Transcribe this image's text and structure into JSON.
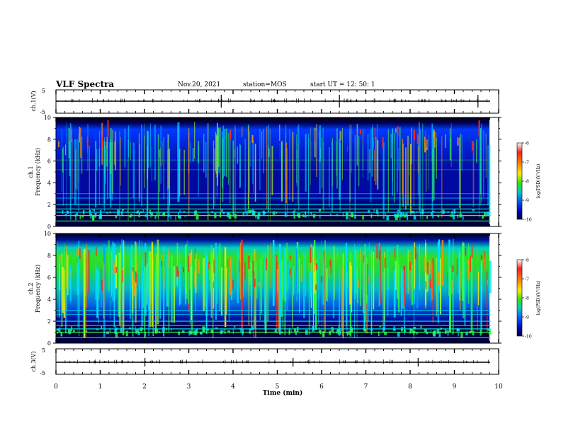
{
  "header": {
    "title": "VLF Spectra",
    "date": "Nov.20, 2021",
    "station": "station=MOS",
    "start": "start  UT =   12: 50: 1"
  },
  "colorbar": {
    "label": "log(PSD)(V²/Hz)",
    "ticks": [
      "-6",
      "-7",
      "-8",
      "-9",
      "-10"
    ],
    "colors": [
      "#ffffff",
      "#ff2020",
      "#ff8a00",
      "#ffe800",
      "#32e600",
      "#00c8c8",
      "#0050ff",
      "#0000b4",
      "#000046"
    ]
  },
  "chart_data": [
    {
      "type": "line",
      "name": "ch.1 waveform",
      "ylabel": "ch.1(V)",
      "ylim": [
        -5,
        5
      ],
      "yticks": [
        "5",
        "-5"
      ],
      "x": [
        0,
        10
      ],
      "y": [
        0,
        0
      ]
    },
    {
      "type": "heatmap",
      "name": "ch.1 spectrogram",
      "ylabel_top": "ch.1",
      "ylabel": "Frequency (kHz)",
      "xlim": [
        0,
        10
      ],
      "ylim": [
        0,
        10
      ],
      "yticks": [
        "0",
        "2",
        "4",
        "6",
        "8",
        "10"
      ],
      "data_end_min": 9.82,
      "horizontal_lines_khz": [
        0.5,
        1.0,
        1.3,
        1.6,
        2.0,
        2.6,
        3.0,
        5.2,
        6.1
      ]
    },
    {
      "type": "heatmap",
      "name": "ch.2 spectrogram",
      "ylabel_top": "ch.2",
      "ylabel": "Frequency (kHz)",
      "xlim": [
        0,
        10
      ],
      "ylim": [
        0,
        10
      ],
      "yticks": [
        "0",
        "2",
        "4",
        "6",
        "8",
        "10"
      ],
      "data_end_min": 9.82,
      "horizontal_lines_khz": [
        0.5,
        1.0,
        1.3,
        1.6,
        2.0,
        2.6,
        3.0
      ]
    },
    {
      "type": "line",
      "name": "ch.3 waveform",
      "ylabel": "ch.3(V)",
      "ylim": [
        -5,
        5
      ],
      "yticks": [
        "5",
        "-5"
      ],
      "x": [
        0,
        10
      ],
      "y": [
        0,
        0
      ]
    }
  ],
  "xaxis": {
    "label": "Time (min)",
    "ticks": [
      "0",
      "1",
      "2",
      "3",
      "4",
      "5",
      "6",
      "7",
      "8",
      "9",
      "10"
    ]
  }
}
